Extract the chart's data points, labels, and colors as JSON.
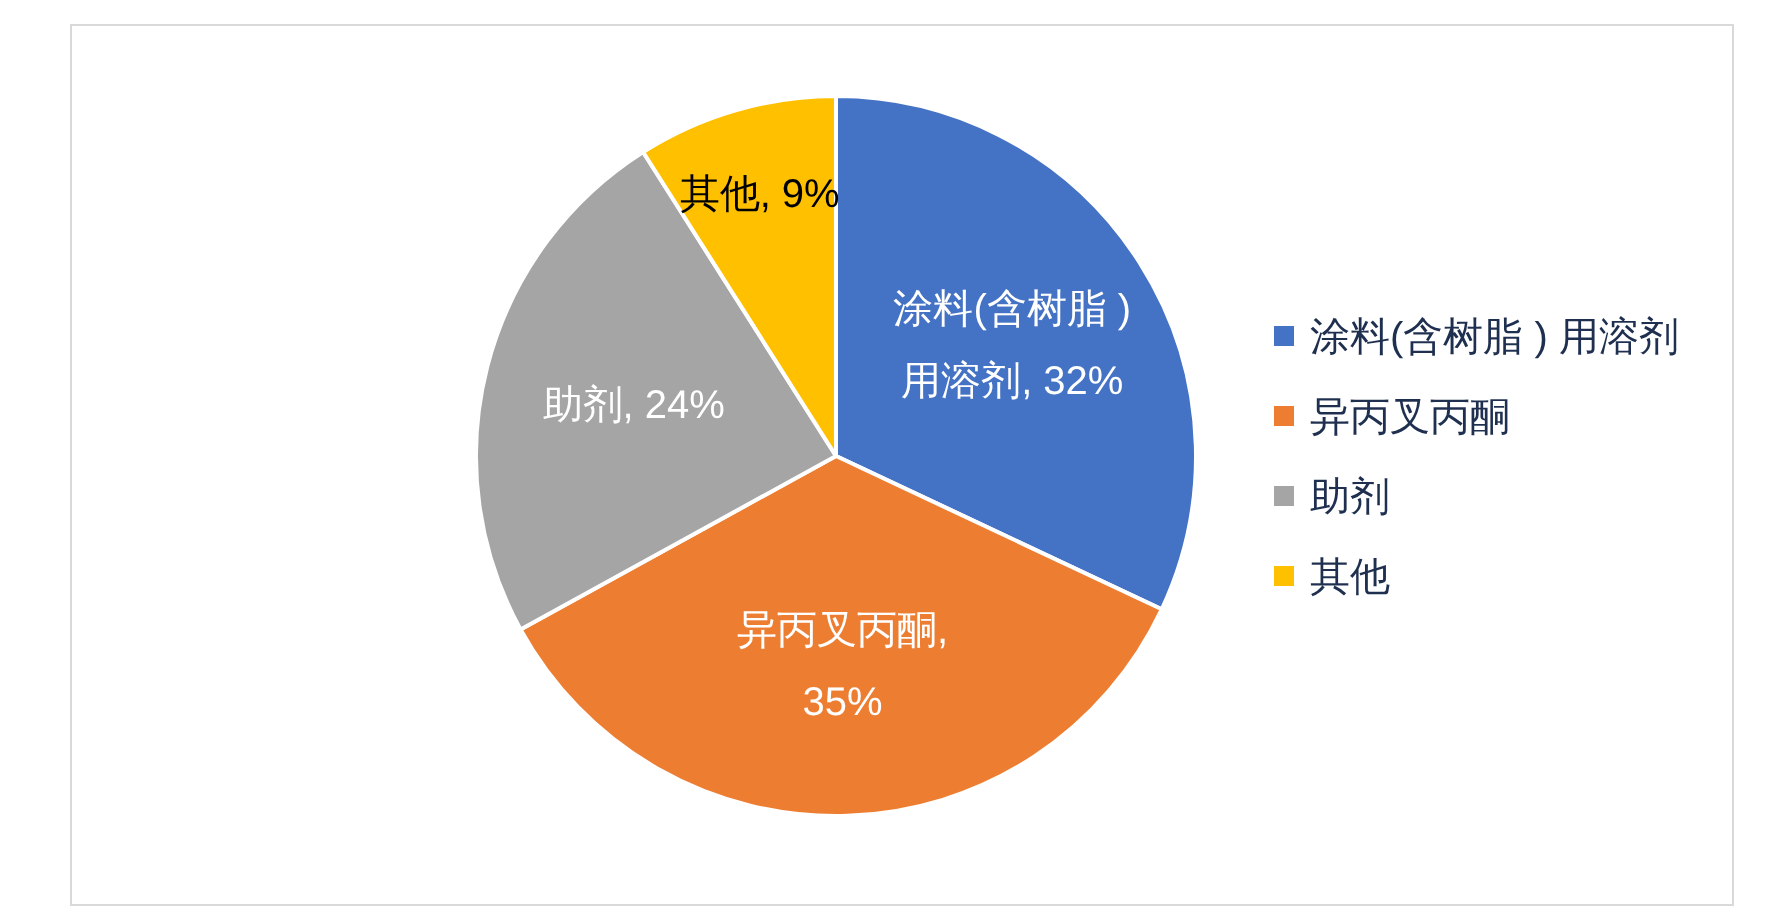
{
  "chart_data": {
    "type": "pie",
    "categories": [
      "涂料(含树脂 ) 用溶剂",
      "异丙叉丙酮",
      "助剂",
      "其他"
    ],
    "values": [
      32,
      35,
      24,
      9
    ],
    "colors": [
      "#4472c4",
      "#ed7d31",
      "#a5a5a5",
      "#ffc000"
    ],
    "value_labels": [
      "涂料(含树脂 ) 用溶剂, 32%",
      "异丙叉丙酮, 35%",
      "助剂, 24%",
      "其他, 9%"
    ],
    "legend": "right"
  }
}
